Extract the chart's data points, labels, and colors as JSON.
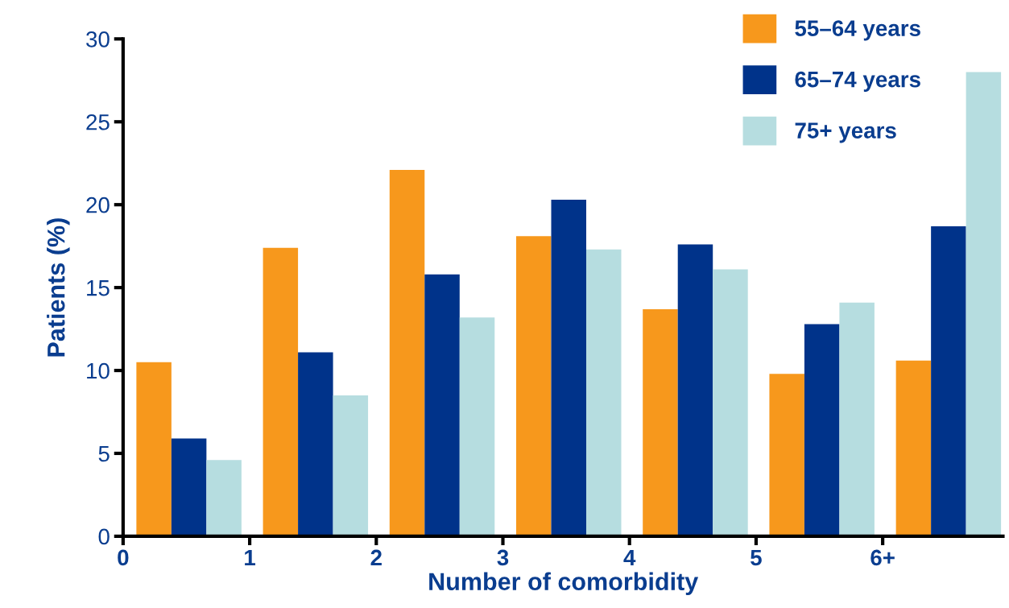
{
  "chart_data": {
    "type": "bar",
    "xlabel": "Number of comorbidity",
    "ylabel": "Patients (%)",
    "x": [
      0.5,
      1.5,
      2.5,
      3.5,
      4.5,
      5.5,
      6.5
    ],
    "series": [
      {
        "name": "55–64 years",
        "color": "#f7981c",
        "values": [
          10.5,
          17.4,
          22.1,
          18.1,
          13.7,
          9.8,
          10.6
        ]
      },
      {
        "name": "65–74 years",
        "color": "#00338a",
        "values": [
          5.9,
          11.1,
          15.8,
          20.3,
          17.6,
          12.8,
          18.7
        ]
      },
      {
        "name": "75+ years",
        "color": "#b6dde0",
        "values": [
          4.6,
          8.5,
          13.2,
          17.3,
          16.1,
          14.1,
          28.0
        ]
      }
    ],
    "xlim": [
      0,
      6.95
    ],
    "xticks": [
      0,
      1,
      2,
      3,
      4,
      5,
      {
        "value": 6,
        "label": "6+"
      }
    ],
    "ylim": [
      0,
      30
    ],
    "yticks": [
      0,
      5,
      10,
      15,
      20,
      25,
      30
    ],
    "grid": false,
    "legend": "top right"
  }
}
